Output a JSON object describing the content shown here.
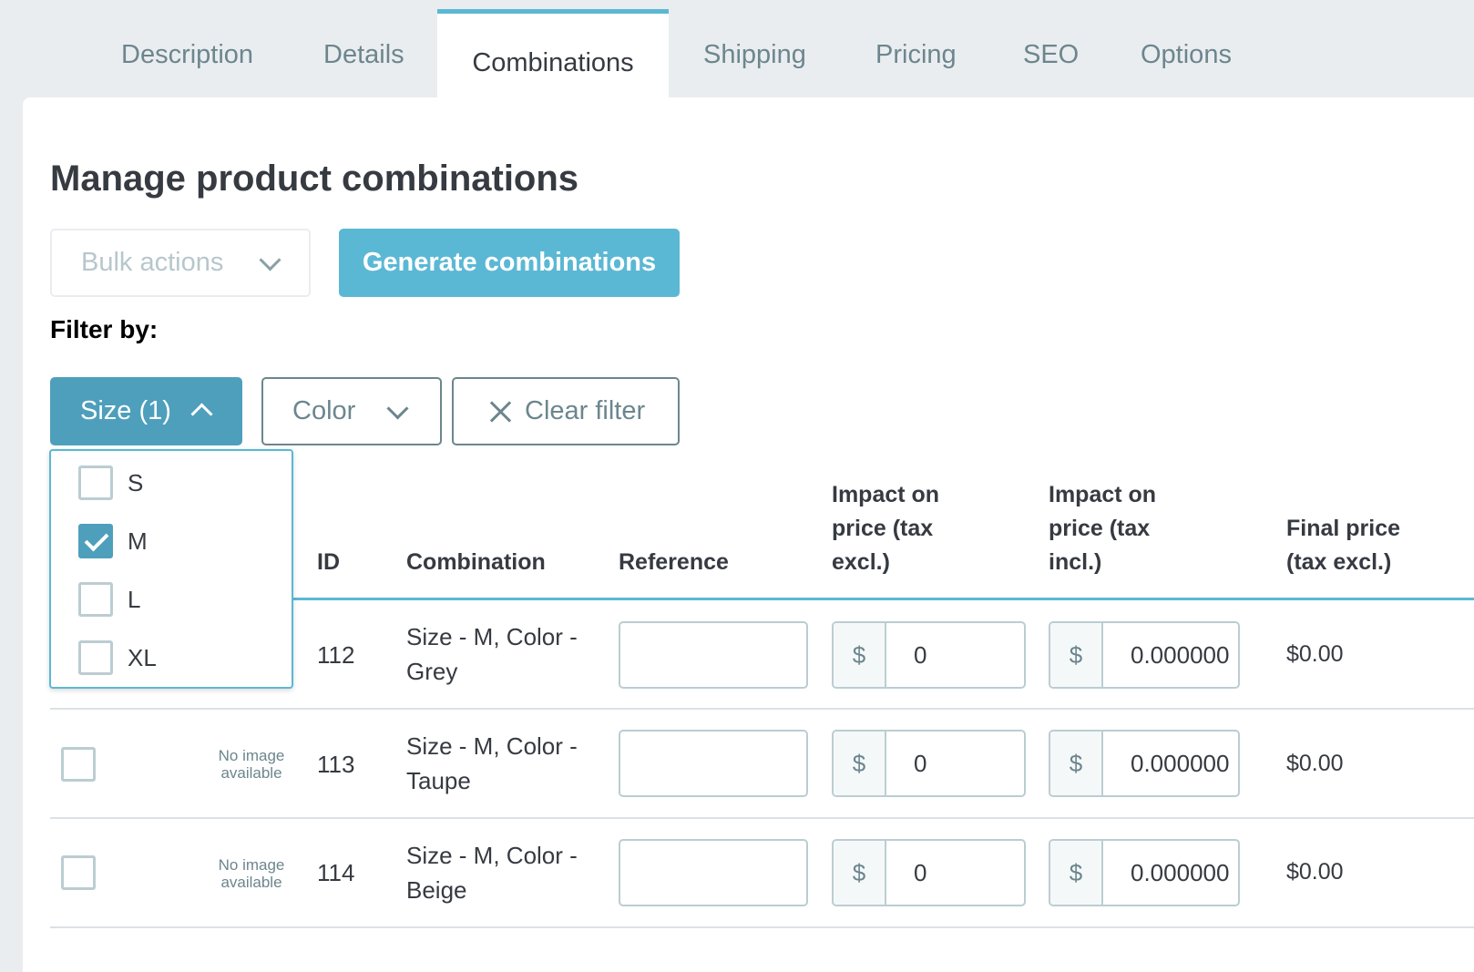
{
  "tabs": [
    {
      "label": "Description"
    },
    {
      "label": "Details"
    },
    {
      "label": "Combinations"
    },
    {
      "label": "Shipping"
    },
    {
      "label": "Pricing"
    },
    {
      "label": "SEO"
    },
    {
      "label": "Options"
    }
  ],
  "page_title": "Manage product combinations",
  "bulk_actions": {
    "label": "Bulk actions"
  },
  "generate_button": "Generate combinations",
  "filter": {
    "label": "Filter by:",
    "size_button": "Size (1)",
    "color_button": "Color",
    "clear_button": "Clear filter",
    "size_options": [
      {
        "label": "S",
        "checked": false
      },
      {
        "label": "M",
        "checked": true
      },
      {
        "label": "L",
        "checked": false
      },
      {
        "label": "XL",
        "checked": false
      }
    ]
  },
  "table": {
    "headers": {
      "id": "ID",
      "combination": "Combination",
      "reference": "Reference",
      "impact_excl": "Impact on price (tax excl.)",
      "impact_incl": "Impact on price (tax incl.)",
      "final_price": "Final price (tax excl.)"
    },
    "no_image": "No image available",
    "currency": "$",
    "rows": [
      {
        "id": "112",
        "combination": "Size - M, Color - Grey",
        "reference": "",
        "impact_excl": "0",
        "impact_incl": "0.000000",
        "final_price": "$0.00"
      },
      {
        "id": "113",
        "combination": "Size - M, Color - Taupe",
        "reference": "",
        "impact_excl": "0",
        "impact_incl": "0.000000",
        "final_price": "$0.00"
      },
      {
        "id": "114",
        "combination": "Size - M, Color - Beige",
        "reference": "",
        "impact_excl": "0",
        "impact_incl": "0.000000",
        "final_price": "$0.00"
      }
    ]
  },
  "colors": {
    "accent": "#5bb8d4",
    "accent_dark": "#4e9fbc",
    "border": "#bbcdd2",
    "text": "#363a41",
    "muted": "#6c868e"
  }
}
